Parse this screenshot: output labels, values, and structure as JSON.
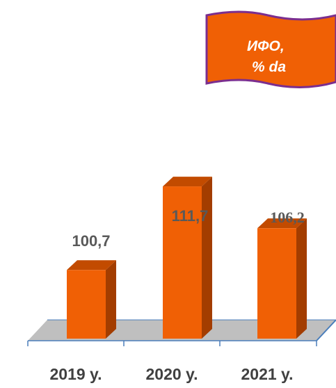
{
  "title_flag": {
    "line1": "ИФО,",
    "line2": "% da"
  },
  "colors": {
    "bar_front": "#f06005",
    "bar_side": "#a33d00",
    "bar_top": "#c24b00",
    "flag_fill": "#f06005",
    "flag_border": "#7b2e8f",
    "floor": "#bfbfbf",
    "axis": "#4a7ebb"
  },
  "chart_data": {
    "type": "bar",
    "categories": [
      "2019 y.",
      "2020 y.",
      "2021 y."
    ],
    "values": [
      100.7,
      111.7,
      106.2
    ],
    "value_labels": [
      "100,7",
      "111,7",
      "106,2"
    ],
    "title": "ИФО, % da",
    "xlabel": "",
    "ylabel": "",
    "three_d": true
  }
}
